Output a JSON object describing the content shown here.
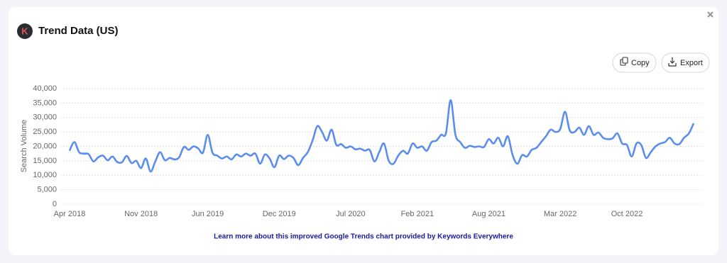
{
  "logo_letter": "K",
  "buttons": {
    "copy": "Copy",
    "export": "Export"
  },
  "footer_link": "Learn more about this improved Google Trends chart provided by Keywords Everywhere",
  "chart_data": {
    "type": "line",
    "title": "Trend Data (US)",
    "y_label": "Search Volume",
    "color": "#5b8def",
    "grid": true,
    "ylim": [
      0,
      40000
    ],
    "yticks": [
      0,
      {
        "value": 5000,
        "label": "5,000"
      },
      {
        "value": 10000,
        "label": "10,000"
      },
      {
        "value": 15000,
        "label": "15,000"
      },
      {
        "value": 20000,
        "label": "20,000"
      },
      {
        "value": 25000,
        "label": "25,000"
      },
      {
        "value": 30000,
        "label": "30,000"
      },
      {
        "value": 35000,
        "label": "35,000"
      },
      {
        "value": 40000,
        "label": "40,000"
      }
    ],
    "categories": [
      "Apr 2018",
      null,
      null,
      null,
      null,
      null,
      null,
      null,
      null,
      null,
      null,
      null,
      null,
      null,
      null,
      "Nov 2018",
      null,
      null,
      null,
      null,
      null,
      null,
      null,
      null,
      null,
      null,
      null,
      null,
      null,
      "Jun 2019",
      null,
      null,
      null,
      null,
      null,
      null,
      null,
      null,
      null,
      null,
      null,
      null,
      null,
      null,
      "Dec 2019",
      null,
      null,
      null,
      null,
      null,
      null,
      null,
      null,
      null,
      null,
      null,
      null,
      null,
      null,
      "Jul 2020",
      null,
      null,
      null,
      null,
      null,
      null,
      null,
      null,
      null,
      null,
      null,
      null,
      null,
      "Feb 2021",
      null,
      null,
      null,
      null,
      null,
      null,
      null,
      null,
      null,
      null,
      null,
      null,
      null,
      null,
      "Aug 2021",
      null,
      null,
      null,
      null,
      null,
      null,
      null,
      null,
      null,
      null,
      null,
      null,
      null,
      null,
      "Mar 2022",
      null,
      null,
      null,
      null,
      null,
      null,
      null,
      null,
      null,
      null,
      null,
      null,
      null,
      "Oct 2022",
      null,
      null,
      null,
      null,
      null,
      null,
      null,
      null,
      null,
      null,
      null,
      null,
      null,
      null
    ],
    "values": [
      18500,
      21500,
      18000,
      17500,
      17300,
      14800,
      16200,
      16800,
      15200,
      16500,
      14600,
      14500,
      16700,
      14200,
      15000,
      12500,
      15800,
      11300,
      14800,
      18000,
      15200,
      16000,
      15500,
      16200,
      19800,
      18800,
      20000,
      19300,
      17800,
      24000,
      17800,
      16800,
      15800,
      16500,
      15500,
      17200,
      16500,
      17500,
      16800,
      17500,
      14000,
      17200,
      15800,
      12800,
      16800,
      15600,
      16800,
      16000,
      13500,
      16000,
      18000,
      22000,
      27000,
      25000,
      22000,
      25800,
      20500,
      20800,
      19500,
      20000,
      19000,
      19200,
      18500,
      18800,
      14800,
      18000,
      21000,
      15000,
      14000,
      16800,
      18500,
      17500,
      21000,
      19500,
      20000,
      18500,
      21500,
      22000,
      24000,
      24500,
      36000,
      24000,
      21500,
      19500,
      20200,
      19800,
      20000,
      19800,
      22500,
      21000,
      23000,
      20000,
      23500,
      17000,
      14000,
      17000,
      16500,
      18800,
      19500,
      21500,
      23500,
      25800,
      25000,
      26000,
      32000,
      25500,
      25000,
      26500,
      24000,
      27000,
      24000,
      24800,
      23000,
      22500,
      22800,
      24500,
      21000,
      20500,
      16500,
      21000,
      20500,
      16000,
      18000,
      20000,
      21000,
      21500,
      23000,
      21000,
      20800,
      23000,
      24500,
      28000
    ]
  }
}
